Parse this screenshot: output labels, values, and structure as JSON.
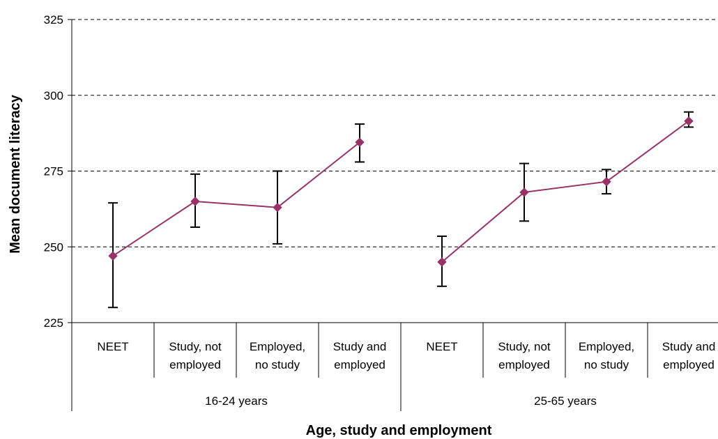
{
  "chart_data": {
    "type": "line",
    "xlabel": "Age, study and employment",
    "ylabel": "Mean document literacy",
    "ylim": [
      225,
      325
    ],
    "yticks": [
      225,
      250,
      275,
      300,
      325
    ],
    "grid": "horizontal-dashed",
    "groups": [
      {
        "label": "16-24 years",
        "categories": [
          [
            "NEET"
          ],
          [
            "Study, not",
            "employed"
          ],
          [
            "Employed,",
            "no study"
          ],
          [
            "Study and",
            "employed"
          ]
        ],
        "values": [
          247,
          265,
          263,
          284.5
        ],
        "error_low": [
          230,
          256.5,
          251,
          278
        ],
        "error_high": [
          264.5,
          274,
          275,
          290.5
        ]
      },
      {
        "label": "25-65 years",
        "categories": [
          [
            "NEET"
          ],
          [
            "Study, not",
            "employed"
          ],
          [
            "Employed,",
            "no study"
          ],
          [
            "Study and",
            "employed"
          ]
        ],
        "values": [
          245,
          268,
          271.5,
          291.5
        ],
        "error_low": [
          237,
          258.5,
          267.5,
          289.5
        ],
        "error_high": [
          253.5,
          277.5,
          275.5,
          294.5
        ]
      }
    ],
    "colors": {
      "series": "#993366",
      "error_bar": "#000000",
      "grid": "#000000"
    }
  }
}
